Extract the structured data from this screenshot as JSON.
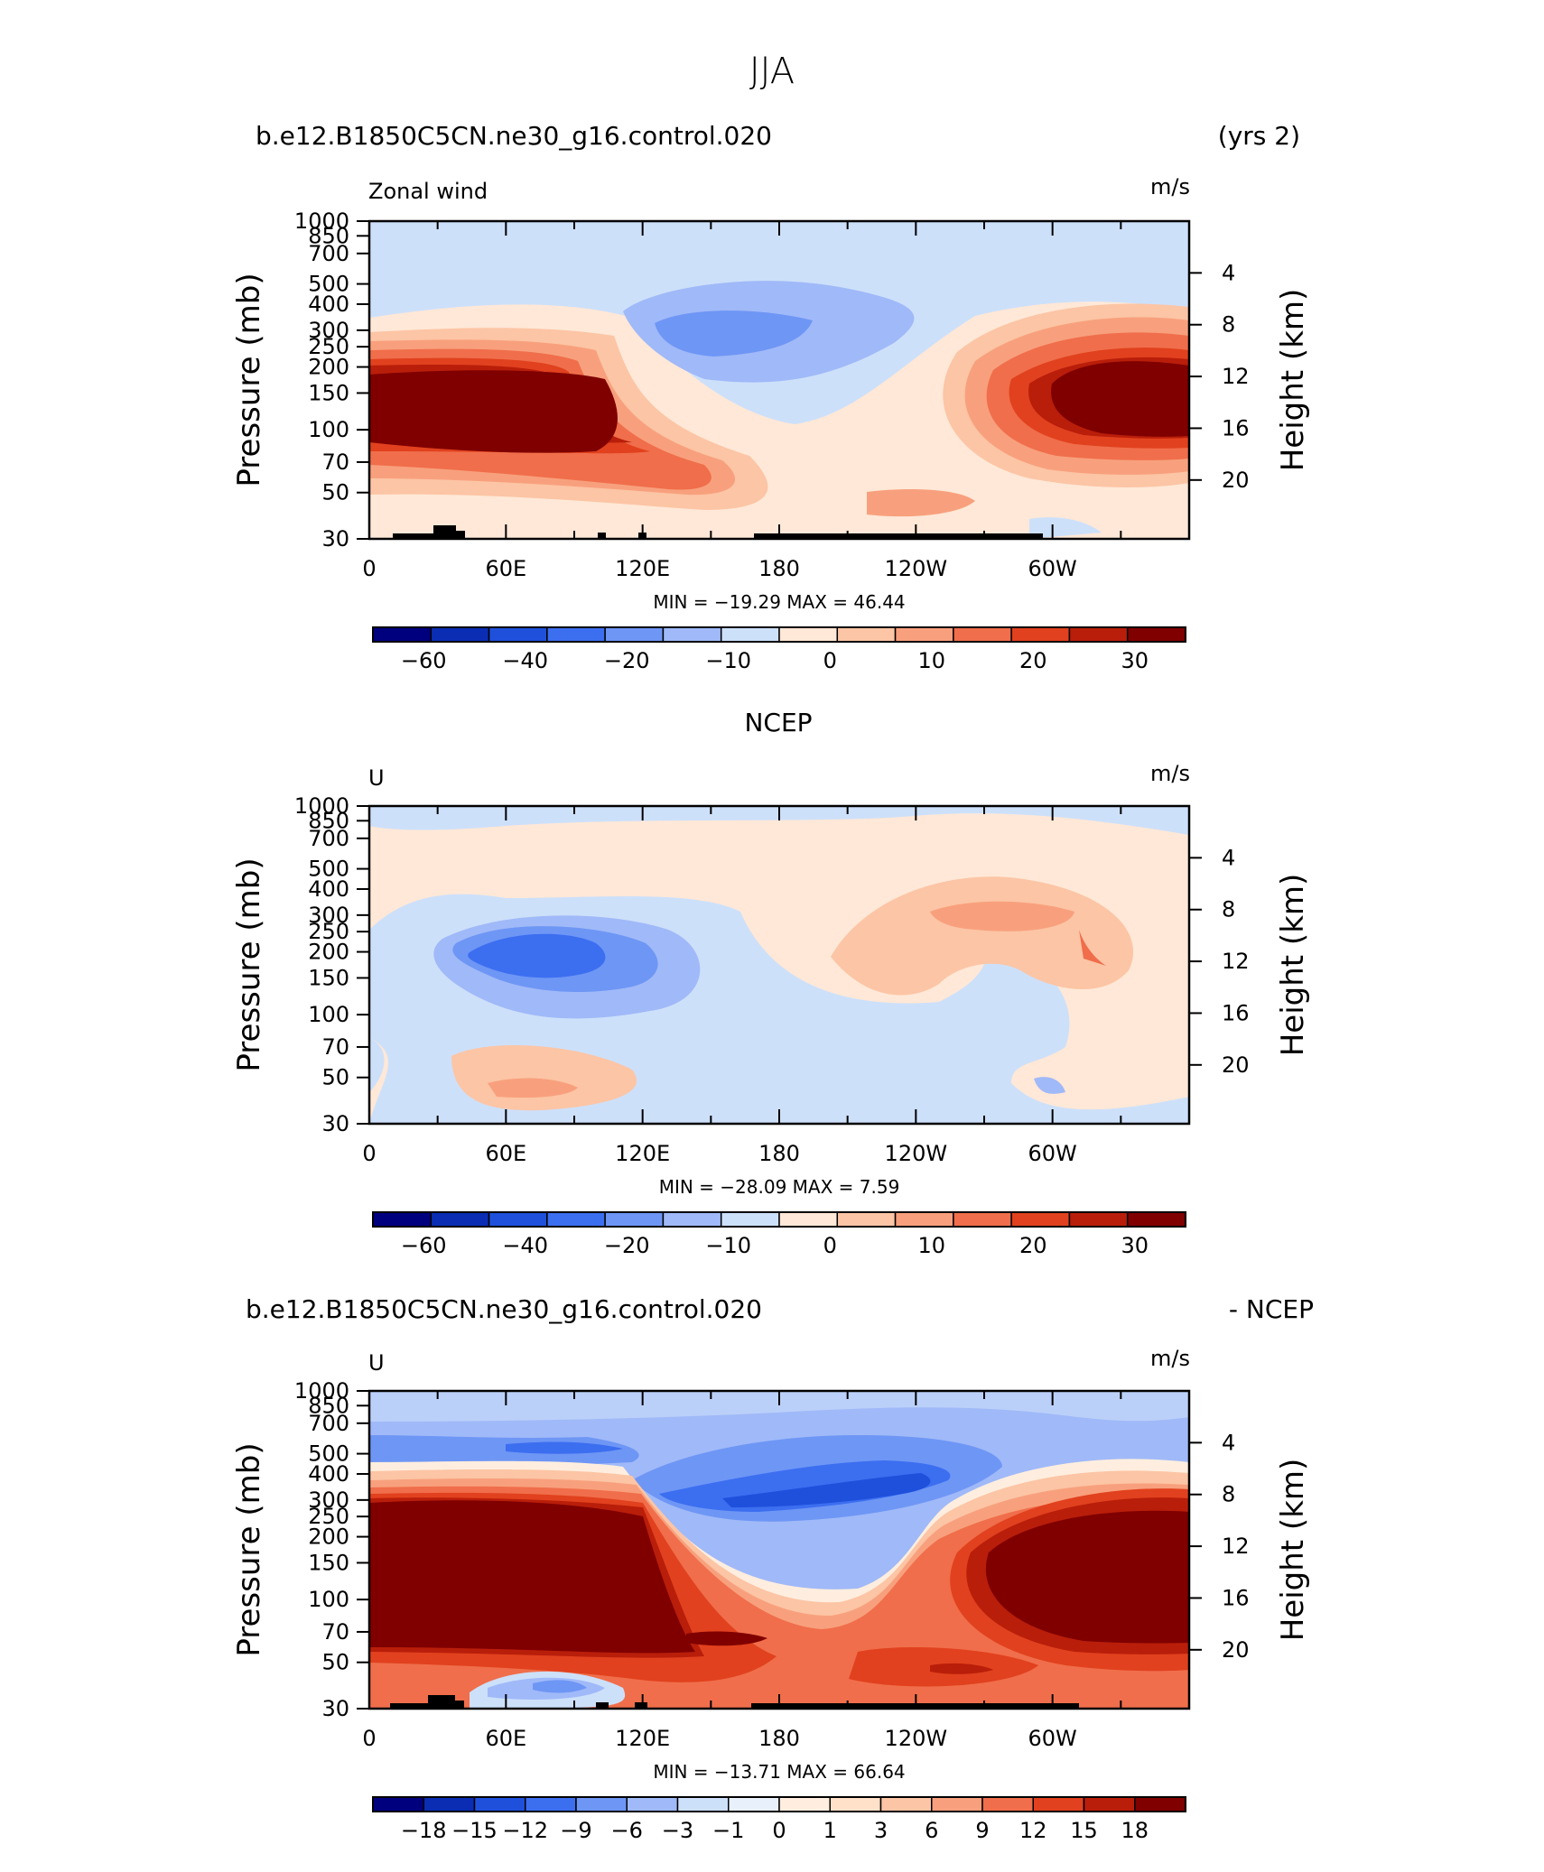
{
  "figure": {
    "title": "JJA"
  },
  "palettes": {
    "blue_red_14": [
      "#00007f",
      "#0a2db4",
      "#1e50dc",
      "#3c6ef0",
      "#6e96f5",
      "#a0b9f8",
      "#cde0fa",
      "#ffe8d7",
      "#fcc5a5",
      "#f8a07d",
      "#f06e4b",
      "#e1411e",
      "#b91e0a",
      "#800000"
    ],
    "blue_red_16": [
      "#00007f",
      "#0a2db4",
      "#1e50dc",
      "#3c6ef0",
      "#6e96f5",
      "#a0b9f8",
      "#cde0fa",
      "#e8f0fc",
      "#ffeedf",
      "#ffe0c8",
      "#fcc5a5",
      "#f8a07d",
      "#f06e4b",
      "#e1411e",
      "#b91e0a",
      "#800000"
    ]
  },
  "chart_data": [
    {
      "type": "heatmap",
      "title_left": "b.e12.B1850C5CN.ne30_g16.control.020",
      "title_right": "(yrs 2)",
      "variable": "Zonal wind",
      "units": "m/s",
      "ylabel": "Pressure (mb)",
      "ylabel_right": "Height (km)",
      "x_ticks": [
        "0",
        "60E",
        "120E",
        "180",
        "120W",
        "60W"
      ],
      "y_ticks": [
        "30",
        "50",
        "70",
        "100",
        "150",
        "200",
        "250",
        "300",
        "400",
        "500",
        "700",
        "850",
        "1000"
      ],
      "y_right_ticks": [
        "20",
        "16",
        "12",
        "8",
        "4"
      ],
      "min_max": "MIN = −19.29   MAX =   46.44",
      "min": -19.29,
      "max": 46.44,
      "colorbar_labels": [
        "−60",
        "−40",
        "−20",
        "−10",
        "0",
        "10",
        "20",
        "30"
      ],
      "colorbar_palette": "blue_red_14"
    },
    {
      "type": "heatmap",
      "title_center": "NCEP",
      "variable": "U",
      "units": "m/s",
      "ylabel": "Pressure (mb)",
      "ylabel_right": "Height (km)",
      "x_ticks": [
        "0",
        "60E",
        "120E",
        "180",
        "120W",
        "60W"
      ],
      "y_ticks": [
        "30",
        "50",
        "70",
        "100",
        "150",
        "200",
        "250",
        "300",
        "400",
        "500",
        "700",
        "850",
        "1000"
      ],
      "y_right_ticks": [
        "20",
        "16",
        "12",
        "8",
        "4"
      ],
      "min_max": "MIN = −28.09   MAX =    7.59",
      "min": -28.09,
      "max": 7.59,
      "colorbar_labels": [
        "−60",
        "−40",
        "−20",
        "−10",
        "0",
        "10",
        "20",
        "30"
      ],
      "colorbar_palette": "blue_red_14"
    },
    {
      "type": "heatmap",
      "title_left": "b.e12.B1850C5CN.ne30_g16.control.020",
      "title_right": "- NCEP",
      "variable": "U",
      "units": "m/s",
      "ylabel": "Pressure (mb)",
      "ylabel_right": "Height (km)",
      "x_ticks": [
        "0",
        "60E",
        "120E",
        "180",
        "120W",
        "60W"
      ],
      "y_ticks": [
        "30",
        "50",
        "70",
        "100",
        "150",
        "200",
        "250",
        "300",
        "400",
        "500",
        "700",
        "850",
        "1000"
      ],
      "y_right_ticks": [
        "20",
        "16",
        "12",
        "8",
        "4"
      ],
      "min_max": "MIN = −13.71   MAX =   66.64",
      "min": -13.71,
      "max": 66.64,
      "colorbar_labels": [
        "−18",
        "−15",
        "−12",
        "−9",
        "−6",
        "−3",
        "−1",
        "0",
        "1",
        "3",
        "6",
        "9",
        "12",
        "15",
        "18"
      ],
      "colorbar_palette": "blue_red_16"
    }
  ]
}
